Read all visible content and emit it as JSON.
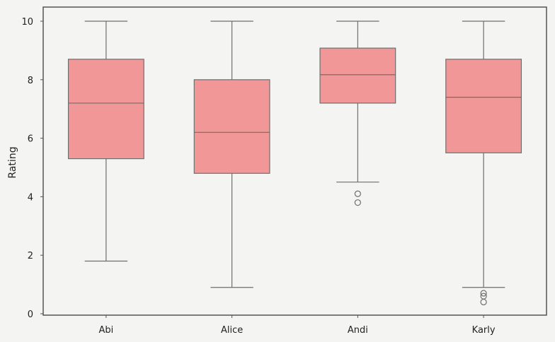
{
  "chart_data": {
    "type": "box",
    "title": "",
    "xlabel": "",
    "ylabel": "Rating",
    "ylim": [
      0,
      10.4
    ],
    "yticks": [
      0,
      2,
      4,
      6,
      8,
      10
    ],
    "grid": false,
    "categories": [
      "Abi",
      "Alice",
      "Andi",
      "Karly"
    ],
    "boxes": [
      {
        "category": "Abi",
        "whisker_low": 1.8,
        "q1": 5.3,
        "median": 7.2,
        "q3": 8.7,
        "whisker_high": 10.0,
        "outliers": []
      },
      {
        "category": "Alice",
        "whisker_low": 0.9,
        "q1": 4.8,
        "median": 6.2,
        "q3": 8.0,
        "whisker_high": 10.0,
        "outliers": []
      },
      {
        "category": "Andi",
        "whisker_low": 4.5,
        "q1": 7.2,
        "median": 8.17,
        "q3": 9.08,
        "whisker_high": 10.0,
        "outliers": [
          4.1,
          3.8
        ]
      },
      {
        "category": "Karly",
        "whisker_low": 0.9,
        "q1": 5.5,
        "median": 7.4,
        "q3": 8.7,
        "whisker_high": 10.0,
        "outliers": [
          0.7,
          0.6,
          0.4
        ]
      }
    ],
    "colors": {
      "box_fill": "#f29797",
      "line": "#6e6e6e",
      "frame": "#555555",
      "background": "#f4f4f2"
    }
  }
}
